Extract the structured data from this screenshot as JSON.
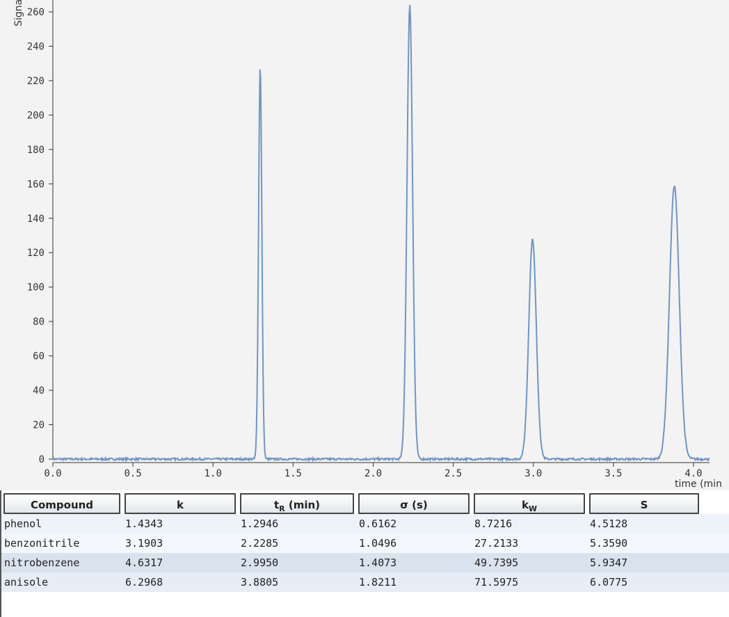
{
  "chart_data": {
    "type": "line",
    "xlabel": "time  (min",
    "ylabel": "Signal",
    "xlim": [
      0.0,
      4.1
    ],
    "ylim": [
      0,
      260
    ],
    "x_ticks": [
      "0.0",
      "0.5",
      "1.0",
      "1.5",
      "2.0",
      "2.5",
      "3.0",
      "3.5",
      "4.0"
    ],
    "y_ticks": [
      "0",
      "20",
      "40",
      "60",
      "80",
      "100",
      "120",
      "140",
      "160",
      "180",
      "200",
      "220",
      "240",
      "260"
    ],
    "grid": false,
    "line_color": "#7095c2",
    "peaks": [
      {
        "name": "phenol",
        "t": 1.2946,
        "height": 228,
        "width": 0.0103
      },
      {
        "name": "benzonitrile",
        "t": 2.2285,
        "height": 264,
        "width": 0.0175
      },
      {
        "name": "nitrobenzene",
        "t": 2.995,
        "height": 128,
        "width": 0.0235
      },
      {
        "name": "anisole",
        "t": 3.8805,
        "height": 159,
        "width": 0.0304
      }
    ],
    "baseline_noise": 0.6
  },
  "table": {
    "headers": {
      "compound": "Compound",
      "k": "k",
      "tr_main": "t",
      "tr_sub": "R",
      "tr_unit": " (min)",
      "sigma": "σ (s)",
      "kw_main": "k",
      "kw_sub": "W",
      "s": "S"
    },
    "rows": [
      {
        "compound": "phenol",
        "k": "1.4343",
        "tr": "1.2946",
        "sigma": "0.6162",
        "kw": "8.7216",
        "s": "4.5128"
      },
      {
        "compound": "benzonitrile",
        "k": "3.1903",
        "tr": "2.2285",
        "sigma": "1.0496",
        "kw": "27.2133",
        "s": "5.3590"
      },
      {
        "compound": "nitrobenzene",
        "k": "4.6317",
        "tr": "2.9950",
        "sigma": "1.4073",
        "kw": "49.7395",
        "s": "5.9347"
      },
      {
        "compound": "anisole",
        "k": "6.2968",
        "tr": "3.8805",
        "sigma": "1.8211",
        "kw": "71.5975",
        "s": "6.0775"
      }
    ]
  }
}
